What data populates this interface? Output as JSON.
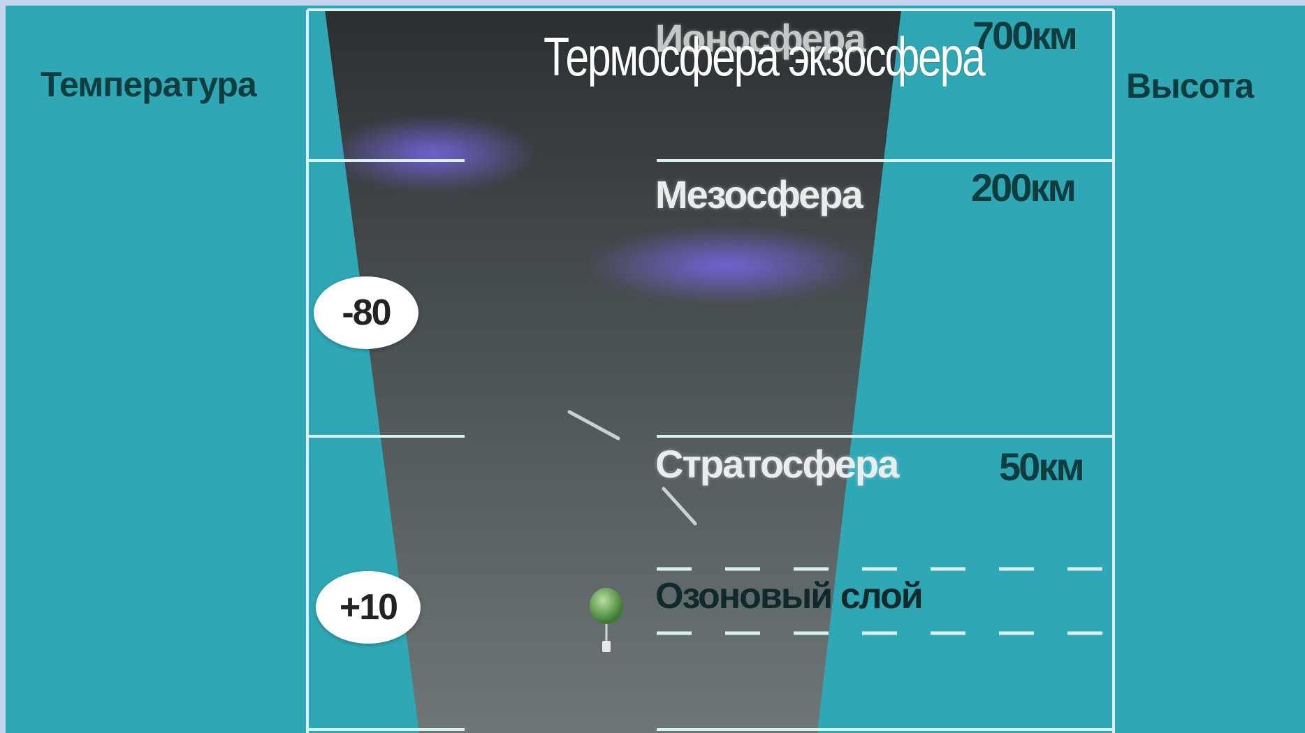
{
  "title": "Термосфера экзосфера",
  "left_label": "Температура",
  "right_label": "Высота",
  "layers": [
    {
      "name": "Ионосфера",
      "altitude": "700км"
    },
    {
      "name": "Мезосфера",
      "altitude": "200км"
    },
    {
      "name": "Стратосфера",
      "altitude": "50км"
    },
    {
      "name": "Озоновый слой",
      "altitude": ""
    }
  ],
  "temperatures": [
    "-80",
    "+10"
  ],
  "colors": {
    "background": "#2fa7b5",
    "column": "#3a4042",
    "aurora": "#6a5ad8",
    "gridline": "#d8f2f4"
  }
}
